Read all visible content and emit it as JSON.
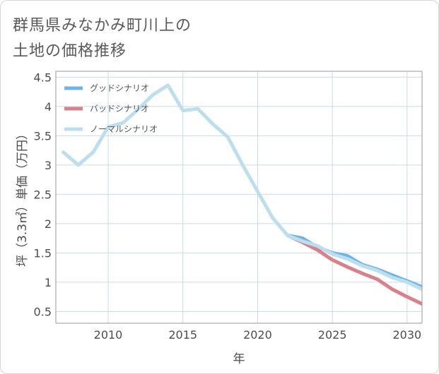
{
  "title": {
    "line1": "群馬県みなかみ町川上の",
    "line2": "土地の価格推移"
  },
  "colors": {
    "good": "#6db5e8",
    "bad": "#d9808a",
    "normal": "#bddfed",
    "grid": "#c8daea",
    "frame": "#999999"
  },
  "chart_data": {
    "type": "line",
    "title": "群馬県みなかみ町川上の土地の価格推移",
    "xlabel": "年",
    "ylabel": "坪（3.3㎡）単価（万円）",
    "xlim": [
      2006.5,
      2031
    ],
    "ylim": [
      0.3,
      4.6
    ],
    "xticks": [
      2010,
      2015,
      2020,
      2025,
      2030
    ],
    "xtick_labels": [
      "2010",
      "2015",
      "2020",
      "2025",
      "2030"
    ],
    "yticks": [
      0.5,
      1,
      1.5,
      2,
      2.5,
      3,
      3.5,
      4,
      4.5
    ],
    "ytick_labels": [
      "0.5",
      "1",
      "1.5",
      "2",
      "2.5",
      "3",
      "3.5",
      "4",
      "4.5"
    ],
    "grid": true,
    "legend_position": "top-left",
    "series": [
      {
        "name": "グッドシナリオ",
        "key": "good",
        "x": [
          2022,
          2023,
          2024,
          2025,
          2026,
          2027,
          2028,
          2029,
          2030,
          2031
        ],
        "values": [
          1.8,
          1.75,
          1.6,
          1.5,
          1.45,
          1.3,
          1.22,
          1.12,
          1.02,
          0.92
        ]
      },
      {
        "name": "バッドシナリオ",
        "key": "bad",
        "x": [
          2022,
          2023,
          2024,
          2025,
          2026,
          2027,
          2028,
          2029,
          2030,
          2031
        ],
        "values": [
          1.8,
          1.68,
          1.55,
          1.38,
          1.26,
          1.15,
          1.05,
          0.88,
          0.75,
          0.63
        ]
      },
      {
        "name": "ノーマルシナリオ",
        "key": "normal",
        "x": [
          2007,
          2008,
          2009,
          2010,
          2011,
          2012,
          2013,
          2014,
          2015,
          2016,
          2017,
          2018,
          2019,
          2020,
          2021,
          2022,
          2023,
          2024,
          2025,
          2026,
          2027,
          2028,
          2029,
          2030,
          2031
        ],
        "values": [
          3.22,
          3.0,
          3.22,
          3.65,
          3.72,
          3.95,
          4.2,
          4.36,
          3.93,
          3.96,
          3.7,
          3.48,
          3.0,
          2.55,
          2.1,
          1.8,
          1.7,
          1.62,
          1.48,
          1.4,
          1.28,
          1.2,
          1.08,
          1.0,
          0.88
        ]
      }
    ]
  }
}
